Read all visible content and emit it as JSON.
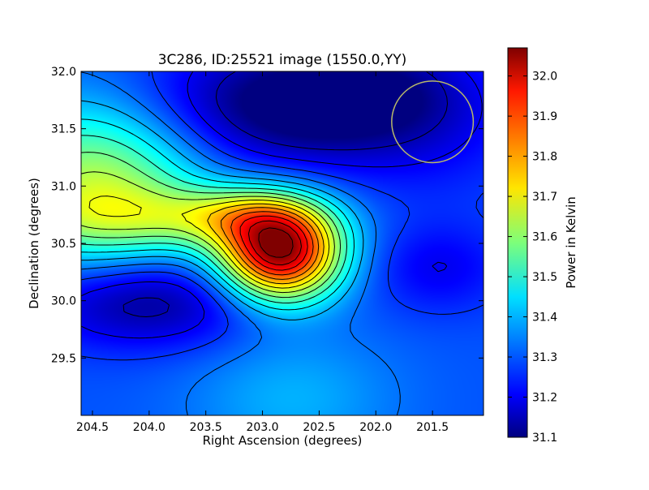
{
  "chart_data": {
    "type": "heatmap",
    "title": "3C286, ID:25521 image (1550.0,YY)",
    "xlabel": "Right Ascension (degrees)",
    "ylabel": "Declination (degrees)",
    "xlim": [
      204.6,
      201.05
    ],
    "ylim": [
      29.0,
      32.0
    ],
    "x_ticks": [
      {
        "value": 204.5,
        "label": "204.5"
      },
      {
        "value": 204.0,
        "label": "204.0"
      },
      {
        "value": 203.5,
        "label": "203.5"
      },
      {
        "value": 203.0,
        "label": "203.0"
      },
      {
        "value": 202.5,
        "label": "202.5"
      },
      {
        "value": 202.0,
        "label": "202.0"
      },
      {
        "value": 201.5,
        "label": "201.5"
      }
    ],
    "y_ticks": [
      {
        "value": 29.5,
        "label": "29.5"
      },
      {
        "value": 30.0,
        "label": "30.0"
      },
      {
        "value": 30.5,
        "label": "30.5"
      },
      {
        "value": 31.0,
        "label": "31.0"
      },
      {
        "value": 31.5,
        "label": "31.5"
      },
      {
        "value": 32.0,
        "label": "32.0"
      }
    ],
    "colorbar": {
      "label": "Power in Kelvin",
      "colormap": "jet",
      "range": [
        31.1,
        32.07
      ],
      "ticks": [
        {
          "value": 32.0,
          "label": "32.0"
        },
        {
          "value": 31.9,
          "label": "31.9"
        },
        {
          "value": 31.8,
          "label": "31.8"
        },
        {
          "value": 31.7,
          "label": "31.7"
        },
        {
          "value": 31.6,
          "label": "31.6"
        },
        {
          "value": 31.5,
          "label": "31.5"
        },
        {
          "value": 31.4,
          "label": "31.4"
        },
        {
          "value": 31.3,
          "label": "31.3"
        },
        {
          "value": 31.2,
          "label": "31.2"
        },
        {
          "value": 31.1,
          "label": "31.1"
        }
      ]
    },
    "field_features": {
      "background_level": 31.3,
      "peak": {
        "ra": 202.8,
        "dec": 30.45,
        "value": 32.07
      },
      "secondary_high": {
        "ra": 204.6,
        "dec": 31.05,
        "value": 31.65
      },
      "minima": [
        {
          "ra": 202.9,
          "dec": 31.9,
          "value": 31.1
        },
        {
          "ra": 204.2,
          "dec": 30.0,
          "value": 31.12
        },
        {
          "ra": 201.6,
          "dec": 30.2,
          "value": 31.22
        }
      ]
    },
    "overlay_circle": {
      "ra": 201.5,
      "dec": 31.56,
      "radius_deg": 0.36,
      "color": "#b8b86a"
    },
    "contours": "black"
  }
}
